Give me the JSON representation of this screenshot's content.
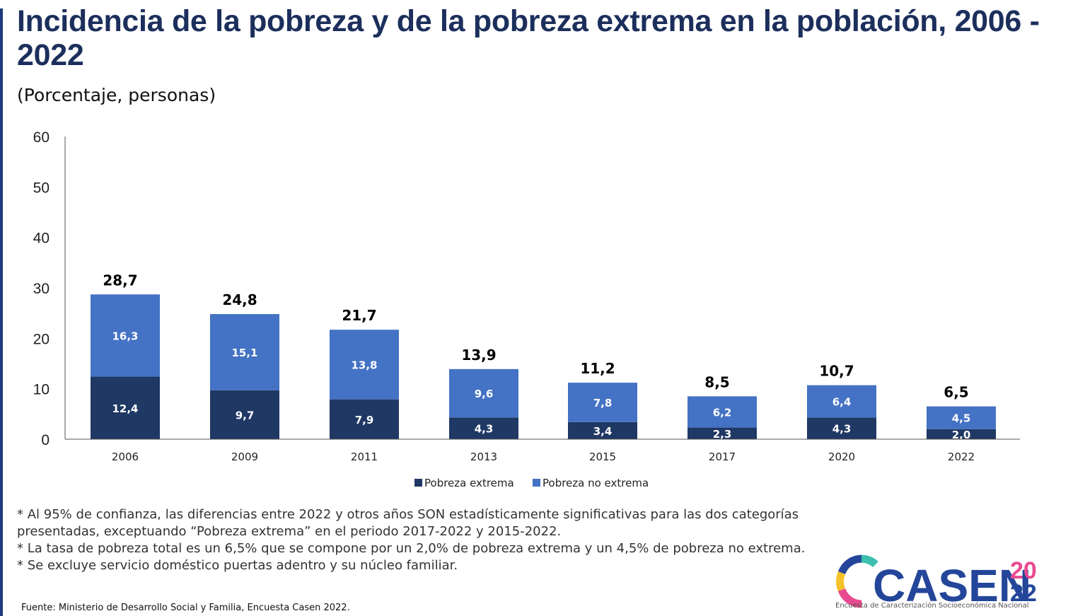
{
  "title": "Incidencia de la pobreza y de la pobreza extrema en la población, 2006 - 2022",
  "subtitle": "(Porcentaje, personas)",
  "chart_data": {
    "type": "bar",
    "stacked": true,
    "categories": [
      "2006",
      "2009",
      "2011",
      "2013",
      "2015",
      "2017",
      "2020",
      "2022"
    ],
    "series": [
      {
        "name": "Pobreza extrema",
        "color": "#1f3864",
        "values": [
          12.4,
          9.7,
          7.9,
          4.3,
          3.4,
          2.3,
          4.3,
          2.0
        ],
        "labels": [
          "12,4",
          "9,7",
          "7,9",
          "4,3",
          "3,4",
          "2,3",
          "4,3",
          "2,0"
        ]
      },
      {
        "name": "Pobreza no extrema",
        "color": "#4472c4",
        "values": [
          16.3,
          15.1,
          13.8,
          9.6,
          7.8,
          6.2,
          6.4,
          4.5
        ],
        "labels": [
          "16,3",
          "15,1",
          "13,8",
          "9,6",
          "7,8",
          "6,2",
          "6,4",
          "4,5"
        ]
      }
    ],
    "totals": [
      28.7,
      24.8,
      21.7,
      13.9,
      11.2,
      8.5,
      10.7,
      6.5
    ],
    "total_labels": [
      "28,7",
      "24,8",
      "21,7",
      "13,9",
      "11,2",
      "8,5",
      "10,7",
      "6,5"
    ],
    "ylim": [
      0,
      60
    ],
    "yticks": [
      "0",
      "10",
      "20",
      "30",
      "40",
      "50",
      "60"
    ],
    "ytick_values": [
      0,
      10,
      20,
      30,
      40,
      50,
      60
    ],
    "xlabel": "",
    "ylabel": "",
    "grid": false,
    "legend": "bottom-center"
  },
  "notes": [
    "* Al 95% de confianza, las diferencias entre 2022 y otros años SON estadísticamente significativas para las dos categorías presentadas, exceptuando “Pobreza extrema” en el periodo 2017-2022 y 2015-2022.",
    "* La tasa de pobreza total es un 6,5% que se compone por un 2,0% de pobreza extrema y un 4,5% de pobreza no extrema.",
    "* Se excluye servicio doméstico puertas adentro y su núcleo familiar."
  ],
  "source": "Fuente: Ministerio de Desarrollo Social y Familia, Encuesta Casen 2022.",
  "logo": {
    "word": "CASEN",
    "year_top": "20",
    "year_bottom": "22",
    "caption": "Encuesta de Caracterización Socioeconómica Nacional",
    "colors": {
      "navy": "#24469a",
      "pink": "#e94a8f",
      "teal": "#3cbfae",
      "yellow": "#f5c228",
      "orange": "#ef7c2a"
    }
  }
}
